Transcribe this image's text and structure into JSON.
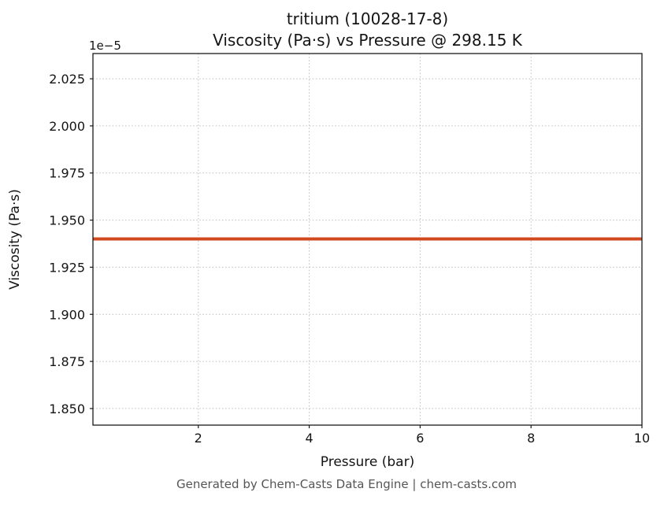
{
  "page": {
    "footer": "Generated by Chem-Casts Data Engine | chem-casts.com"
  },
  "chart_data": {
    "type": "line",
    "title_line1": "tritium (10028-17-8)",
    "title_line2": "Viscosity (Pa·s) vs Pressure @ 298.15 K",
    "xlabel": "Pressure (bar)",
    "ylabel": "Viscosity (Pa·s)",
    "y_offset_label": "1e−5",
    "y_scale": 1e-05,
    "xlim": [
      0.1,
      10
    ],
    "ylim": [
      1.8412,
      2.0384
    ],
    "x_ticks": [
      2,
      4,
      6,
      8,
      10
    ],
    "x_tick_labels": [
      "2",
      "4",
      "6",
      "8",
      "10"
    ],
    "y_ticks": [
      1.85,
      1.875,
      1.9,
      1.925,
      1.95,
      1.975,
      2.0,
      2.025
    ],
    "y_tick_labels": [
      "1.850",
      "1.875",
      "1.900",
      "1.925",
      "1.950",
      "1.975",
      "2.000",
      "2.025"
    ],
    "grid": true,
    "grid_style": "dotted",
    "legend": "none",
    "series": [
      {
        "name": "viscosity-vs-pressure",
        "color": "#d1491e",
        "line_width": 4,
        "x": [
          0.1,
          2,
          4,
          6,
          8,
          10
        ],
        "y": [
          1.94,
          1.94,
          1.94,
          1.94,
          1.94,
          1.94
        ],
        "note": "constant viscosity 1.940e-5 Pa·s across 0.1–10 bar at 298.15 K"
      }
    ]
  }
}
